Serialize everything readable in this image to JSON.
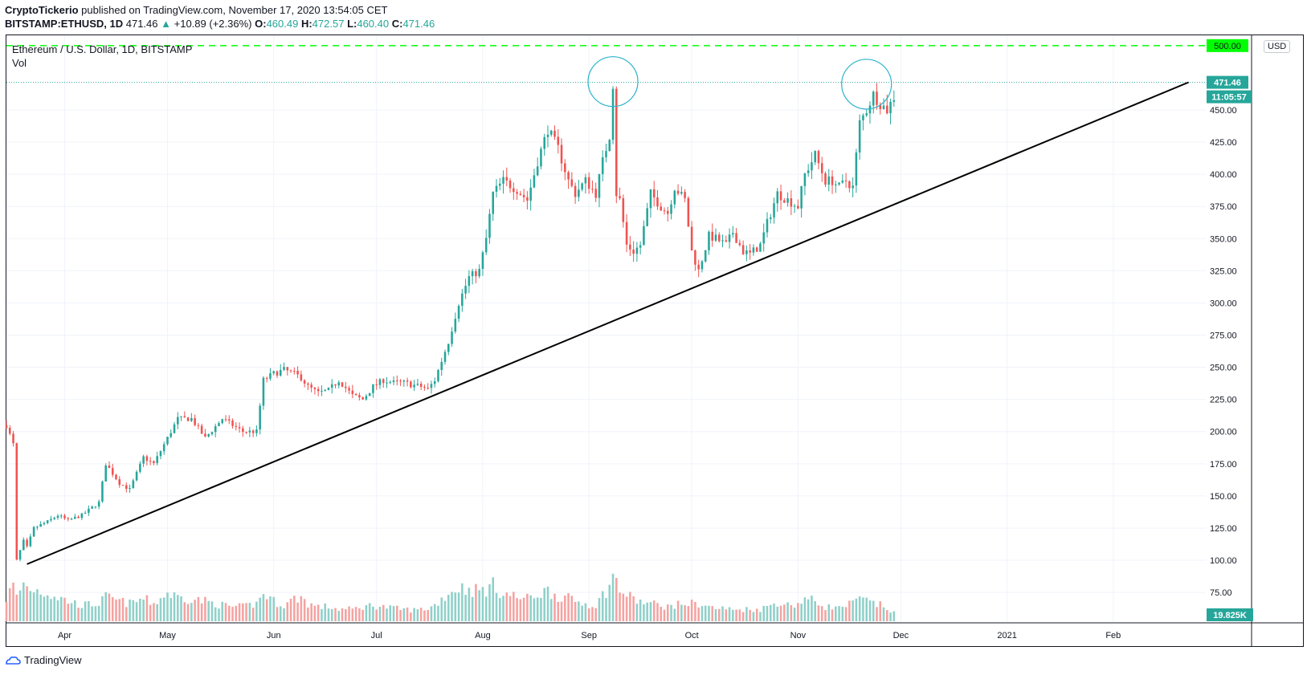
{
  "header": {
    "author": "CryptoTickerio",
    "publish_text": "published on TradingView.com, November 17, 2020 13:54:05 CET",
    "symbol": "BITSTAMP:ETHUSD, 1D",
    "last": "471.46",
    "change_arrow": "▲",
    "change": "+10.89 (+2.36%)",
    "o_label": "O:",
    "o_value": "460.49",
    "h_label": "H:",
    "h_value": "472.57",
    "l_label": "L:",
    "l_value": "460.40",
    "c_label": "C:",
    "c_value": "471.46"
  },
  "legend": {
    "title": "Ethereum / U.S. Dollar, 1D, BITSTAMP",
    "vol": "Vol"
  },
  "currency_button": "USD",
  "footer": {
    "brand": "TradingView"
  },
  "colors": {
    "up": "#26a69a",
    "down": "#ef5350",
    "vol_up": "#8fd0c9",
    "vol_down": "#f4a3a1",
    "level": "#00ff00",
    "price_line": "#26a69a",
    "circle": "#2bb3c9"
  },
  "chart_data": {
    "type": "candlestick",
    "title": "Ethereum / U.S. Dollar, 1D, BITSTAMP",
    "y_ticks": [
      "75.00",
      "100.00",
      "125.00",
      "150.00",
      "175.00",
      "200.00",
      "225.00",
      "250.00",
      "275.00",
      "300.00",
      "325.00",
      "350.00",
      "375.00",
      "400.00",
      "425.00",
      "450.00"
    ],
    "y_tick_values": [
      75,
      100,
      125,
      150,
      175,
      200,
      225,
      250,
      275,
      300,
      325,
      350,
      375,
      400,
      425,
      450
    ],
    "ylim": [
      52,
      508
    ],
    "x_ticks": [
      "Apr",
      "May",
      "Jun",
      "Jul",
      "Aug",
      "Sep",
      "Oct",
      "Nov",
      "Dec",
      "2021",
      "Feb"
    ],
    "x_tick_days": [
      17,
      47,
      78,
      108,
      139,
      170,
      200,
      231,
      261,
      292,
      323
    ],
    "x_range_days": [
      0,
      350
    ],
    "level_line": {
      "value": 500,
      "label": "500.00"
    },
    "last_price": {
      "value": 471.46,
      "label": "471.46",
      "countdown": "11:05:57"
    },
    "volume_label": "19.825K",
    "trendline": {
      "start": {
        "day": 6,
        "price": 97
      },
      "end": {
        "day": 345,
        "price": 471.5
      }
    },
    "circles": [
      {
        "day": 177,
        "price": 472
      },
      {
        "day": 251,
        "price": 470
      }
    ],
    "waypoints": [
      [
        0,
        205
      ],
      [
        2,
        190
      ],
      [
        3,
        100
      ],
      [
        5,
        115
      ],
      [
        6,
        110
      ],
      [
        8,
        125
      ],
      [
        12,
        130
      ],
      [
        15,
        135
      ],
      [
        18,
        131
      ],
      [
        22,
        135
      ],
      [
        27,
        145
      ],
      [
        29,
        175
      ],
      [
        33,
        160
      ],
      [
        36,
        155
      ],
      [
        40,
        180
      ],
      [
        43,
        175
      ],
      [
        47,
        195
      ],
      [
        50,
        210
      ],
      [
        54,
        210
      ],
      [
        58,
        195
      ],
      [
        63,
        210
      ],
      [
        66,
        205
      ],
      [
        69,
        200
      ],
      [
        73,
        200
      ],
      [
        75,
        240
      ],
      [
        78,
        245
      ],
      [
        81,
        248
      ],
      [
        84,
        245
      ],
      [
        86,
        242
      ],
      [
        88,
        235
      ],
      [
        91,
        230
      ],
      [
        94,
        232
      ],
      [
        97,
        240
      ],
      [
        101,
        228
      ],
      [
        104,
        225
      ],
      [
        107,
        235
      ],
      [
        110,
        240
      ],
      [
        113,
        238
      ],
      [
        116,
        238
      ],
      [
        119,
        236
      ],
      [
        121,
        235
      ],
      [
        123,
        233
      ],
      [
        125,
        240
      ],
      [
        129,
        270
      ],
      [
        132,
        300
      ],
      [
        135,
        320
      ],
      [
        138,
        325
      ],
      [
        140,
        350
      ],
      [
        142,
        385
      ],
      [
        145,
        395
      ],
      [
        149,
        388
      ],
      [
        152,
        380
      ],
      [
        155,
        410
      ],
      [
        158,
        435
      ],
      [
        161,
        420
      ],
      [
        164,
        395
      ],
      [
        166,
        385
      ],
      [
        169,
        395
      ],
      [
        172,
        385
      ],
      [
        174,
        410
      ],
      [
        176,
        430
      ],
      [
        177,
        470
      ],
      [
        178,
        385
      ],
      [
        179,
        380
      ],
      [
        181,
        345
      ],
      [
        183,
        340
      ],
      [
        185,
        345
      ],
      [
        188,
        385
      ],
      [
        191,
        375
      ],
      [
        193,
        370
      ],
      [
        195,
        390
      ],
      [
        198,
        380
      ],
      [
        200,
        340
      ],
      [
        202,
        325
      ],
      [
        205,
        352
      ],
      [
        207,
        350
      ],
      [
        210,
        345
      ],
      [
        212,
        355
      ],
      [
        215,
        340
      ],
      [
        217,
        338
      ],
      [
        220,
        345
      ],
      [
        222,
        362
      ],
      [
        225,
        385
      ],
      [
        228,
        380
      ],
      [
        231,
        375
      ],
      [
        233,
        400
      ],
      [
        236,
        415
      ],
      [
        239,
        395
      ],
      [
        241,
        395
      ],
      [
        243,
        390
      ],
      [
        245,
        395
      ],
      [
        247,
        390
      ],
      [
        249,
        440
      ],
      [
        251,
        450
      ],
      [
        253,
        462
      ],
      [
        255,
        455
      ],
      [
        257,
        450
      ],
      [
        259,
        460
      ]
    ],
    "volume": [
      [
        0,
        28
      ],
      [
        2,
        45
      ],
      [
        3,
        30
      ],
      [
        5,
        48
      ],
      [
        6,
        42
      ],
      [
        8,
        40
      ],
      [
        12,
        35
      ],
      [
        15,
        30
      ],
      [
        18,
        25
      ],
      [
        22,
        20
      ],
      [
        27,
        22
      ],
      [
        29,
        30
      ],
      [
        33,
        25
      ],
      [
        36,
        22
      ],
      [
        40,
        28
      ],
      [
        43,
        22
      ],
      [
        47,
        35
      ],
      [
        50,
        30
      ],
      [
        54,
        28
      ],
      [
        58,
        25
      ],
      [
        63,
        20
      ],
      [
        66,
        18
      ],
      [
        69,
        18
      ],
      [
        73,
        22
      ],
      [
        75,
        35
      ],
      [
        78,
        25
      ],
      [
        81,
        20
      ],
      [
        84,
        28
      ],
      [
        86,
        30
      ],
      [
        88,
        22
      ],
      [
        91,
        18
      ],
      [
        94,
        18
      ],
      [
        97,
        15
      ],
      [
        101,
        15
      ],
      [
        104,
        18
      ],
      [
        107,
        20
      ],
      [
        110,
        18
      ],
      [
        113,
        16
      ],
      [
        116,
        15
      ],
      [
        119,
        14
      ],
      [
        121,
        15
      ],
      [
        123,
        16
      ],
      [
        125,
        20
      ],
      [
        129,
        35
      ],
      [
        132,
        42
      ],
      [
        135,
        40
      ],
      [
        138,
        38
      ],
      [
        140,
        40
      ],
      [
        142,
        44
      ],
      [
        145,
        35
      ],
      [
        149,
        30
      ],
      [
        152,
        28
      ],
      [
        155,
        34
      ],
      [
        158,
        38
      ],
      [
        161,
        32
      ],
      [
        164,
        28
      ],
      [
        166,
        25
      ],
      [
        169,
        22
      ],
      [
        172,
        20
      ],
      [
        174,
        32
      ],
      [
        176,
        45
      ],
      [
        177,
        55
      ],
      [
        178,
        48
      ],
      [
        179,
        40
      ],
      [
        181,
        32
      ],
      [
        183,
        28
      ],
      [
        185,
        24
      ],
      [
        188,
        22
      ],
      [
        191,
        20
      ],
      [
        193,
        18
      ],
      [
        195,
        20
      ],
      [
        198,
        22
      ],
      [
        200,
        22
      ],
      [
        202,
        22
      ],
      [
        205,
        18
      ],
      [
        207,
        16
      ],
      [
        210,
        16
      ],
      [
        212,
        14
      ],
      [
        215,
        15
      ],
      [
        217,
        15
      ],
      [
        220,
        15
      ],
      [
        222,
        18
      ],
      [
        225,
        24
      ],
      [
        228,
        20
      ],
      [
        231,
        22
      ],
      [
        233,
        28
      ],
      [
        236,
        25
      ],
      [
        239,
        18
      ],
      [
        241,
        18
      ],
      [
        243,
        16
      ],
      [
        245,
        20
      ],
      [
        247,
        22
      ],
      [
        249,
        28
      ],
      [
        251,
        25
      ],
      [
        253,
        22
      ],
      [
        255,
        20
      ],
      [
        257,
        16
      ],
      [
        259,
        10
      ]
    ]
  }
}
